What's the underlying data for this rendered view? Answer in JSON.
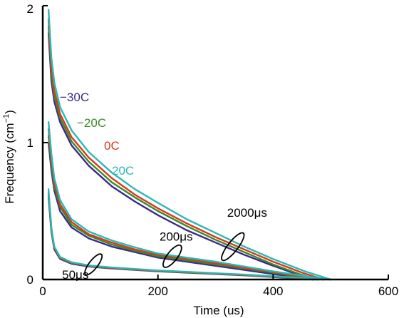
{
  "chart_data": {
    "type": "line",
    "xlabel": "Time (us)",
    "ylabel": "Frequency (cm",
    "ylabel_sup": "−1",
    "ylabel_close": ")",
    "xlim": [
      0,
      600
    ],
    "ylim": [
      0,
      2
    ],
    "xticks": [
      0,
      200,
      400,
      600
    ],
    "xtick_labels": [
      "0",
      "200",
      "400",
      "600"
    ],
    "yticks": [
      0,
      1,
      2
    ],
    "ytick_labels": [
      "0",
      "1",
      "2"
    ],
    "grid": false,
    "legend": [
      {
        "name": "−30C",
        "color": "#3a2a8c"
      },
      {
        "name": "−20C",
        "color": "#3a8a2a"
      },
      {
        "name": "0C",
        "color": "#d83a1a"
      },
      {
        "name": "20C",
        "color": "#2ab8b8"
      }
    ],
    "annotations": [
      {
        "text": "2000μs",
        "x": 330,
        "y": 0.24
      },
      {
        "text": "200μs",
        "x": 225,
        "y": 0.17
      },
      {
        "text": "50μs",
        "x": 88,
        "y": 0.11
      }
    ],
    "series": [
      {
        "group": "2000μs",
        "name": "−30C",
        "color": "#3a2a8c",
        "x": [
          10,
          15,
          20,
          30,
          50,
          80,
          120,
          160,
          200,
          250,
          300,
          350,
          400,
          440,
          470
        ],
        "y": [
          1.8,
          1.45,
          1.3,
          1.15,
          0.98,
          0.83,
          0.68,
          0.57,
          0.47,
          0.36,
          0.27,
          0.18,
          0.1,
          0.04,
          0.0
        ]
      },
      {
        "group": "2000μs",
        "name": "−20C",
        "color": "#3a8a2a",
        "x": [
          10,
          15,
          20,
          30,
          50,
          80,
          120,
          160,
          200,
          250,
          300,
          350,
          400,
          445,
          478
        ],
        "y": [
          1.85,
          1.5,
          1.34,
          1.18,
          1.01,
          0.86,
          0.71,
          0.6,
          0.5,
          0.39,
          0.29,
          0.2,
          0.11,
          0.04,
          0.0
        ]
      },
      {
        "group": "2000μs",
        "name": "0C",
        "color": "#d83a1a",
        "x": [
          10,
          15,
          20,
          30,
          50,
          80,
          120,
          160,
          200,
          250,
          300,
          350,
          400,
          450,
          488
        ],
        "y": [
          1.9,
          1.55,
          1.38,
          1.21,
          1.04,
          0.89,
          0.74,
          0.62,
          0.52,
          0.41,
          0.31,
          0.22,
          0.13,
          0.05,
          0.0
        ]
      },
      {
        "group": "2000μs",
        "name": "20C",
        "color": "#2ab8b8",
        "x": [
          10,
          15,
          20,
          30,
          50,
          80,
          120,
          160,
          200,
          250,
          300,
          350,
          400,
          455,
          500
        ],
        "y": [
          1.97,
          1.62,
          1.44,
          1.26,
          1.09,
          0.93,
          0.78,
          0.66,
          0.56,
          0.44,
          0.34,
          0.24,
          0.15,
          0.06,
          0.0
        ]
      },
      {
        "group": "200μs",
        "name": "−30C",
        "color": "#3a2a8c",
        "x": [
          10,
          15,
          20,
          30,
          50,
          80,
          120,
          160,
          200,
          250,
          300,
          350,
          400,
          440,
          470
        ],
        "y": [
          1.0,
          0.8,
          0.65,
          0.5,
          0.38,
          0.3,
          0.24,
          0.2,
          0.16,
          0.13,
          0.1,
          0.07,
          0.04,
          0.015,
          0.0
        ]
      },
      {
        "group": "200μs",
        "name": "−20C",
        "color": "#3a8a2a",
        "x": [
          10,
          15,
          20,
          30,
          50,
          80,
          120,
          160,
          200,
          250,
          300,
          350,
          400,
          445,
          478
        ],
        "y": [
          1.05,
          0.84,
          0.68,
          0.53,
          0.4,
          0.32,
          0.255,
          0.21,
          0.17,
          0.14,
          0.11,
          0.08,
          0.05,
          0.02,
          0.0
        ]
      },
      {
        "group": "200μs",
        "name": "0C",
        "color": "#d83a1a",
        "x": [
          10,
          15,
          20,
          30,
          50,
          80,
          120,
          160,
          200,
          250,
          300,
          350,
          400,
          450,
          488
        ],
        "y": [
          1.1,
          0.88,
          0.71,
          0.55,
          0.42,
          0.33,
          0.27,
          0.22,
          0.18,
          0.15,
          0.12,
          0.085,
          0.055,
          0.022,
          0.0
        ]
      },
      {
        "group": "200μs",
        "name": "20C",
        "color": "#2ab8b8",
        "x": [
          10,
          15,
          20,
          30,
          50,
          80,
          120,
          160,
          200,
          250,
          300,
          350,
          400,
          455,
          500
        ],
        "y": [
          1.15,
          0.92,
          0.74,
          0.58,
          0.44,
          0.35,
          0.285,
          0.235,
          0.19,
          0.16,
          0.13,
          0.095,
          0.06,
          0.025,
          0.0
        ]
      },
      {
        "group": "50μs",
        "name": "−30C",
        "color": "#3a2a8c",
        "x": [
          10,
          15,
          20,
          30,
          50,
          80,
          120,
          160,
          200,
          250,
          300,
          350,
          400,
          440,
          470
        ],
        "y": [
          0.6,
          0.35,
          0.22,
          0.15,
          0.115,
          0.095,
          0.08,
          0.07,
          0.06,
          0.05,
          0.04,
          0.03,
          0.018,
          0.008,
          0.0
        ]
      },
      {
        "group": "50μs",
        "name": "−20C",
        "color": "#3a8a2a",
        "x": [
          10,
          15,
          20,
          30,
          50,
          80,
          120,
          160,
          200,
          250,
          300,
          350,
          400,
          445,
          478
        ],
        "y": [
          0.62,
          0.36,
          0.23,
          0.155,
          0.12,
          0.098,
          0.083,
          0.072,
          0.062,
          0.052,
          0.042,
          0.032,
          0.02,
          0.009,
          0.0
        ]
      },
      {
        "group": "50μs",
        "name": "0C",
        "color": "#d83a1a",
        "x": [
          10,
          15,
          20,
          30,
          50,
          80,
          120,
          160,
          200,
          250,
          300,
          350,
          400,
          450,
          488
        ],
        "y": [
          0.64,
          0.37,
          0.235,
          0.16,
          0.123,
          0.1,
          0.085,
          0.074,
          0.064,
          0.054,
          0.044,
          0.034,
          0.022,
          0.01,
          0.0
        ]
      },
      {
        "group": "50μs",
        "name": "20C",
        "color": "#2ab8b8",
        "x": [
          10,
          15,
          20,
          30,
          50,
          80,
          120,
          160,
          200,
          250,
          300,
          350,
          400,
          455,
          500
        ],
        "y": [
          0.66,
          0.38,
          0.24,
          0.165,
          0.126,
          0.103,
          0.088,
          0.077,
          0.066,
          0.056,
          0.046,
          0.036,
          0.024,
          0.011,
          0.0
        ]
      }
    ]
  }
}
